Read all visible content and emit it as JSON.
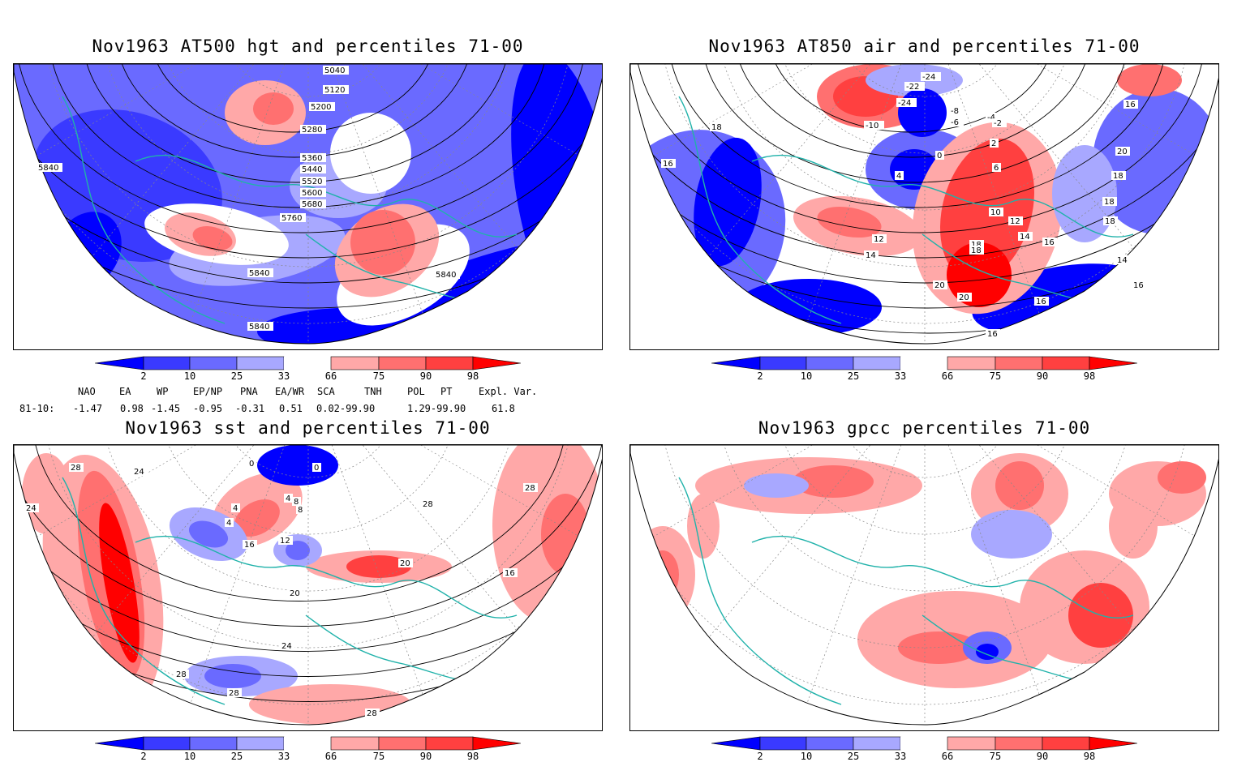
{
  "panels": [
    {
      "id": "p1",
      "title": "Nov1963 AT500 hgt and percentiles 71-00",
      "contour_labels": [
        "5040",
        "5120",
        "5200",
        "5280",
        "5360",
        "5440",
        "5520",
        "5600",
        "5680",
        "5760",
        "5840",
        "5840",
        "5840",
        "5840"
      ]
    },
    {
      "id": "p2",
      "title": "Nov1963 AT850 air and percentiles 71-00",
      "contour_labels": [
        "-24",
        "-22",
        "-24",
        "-10",
        "-8",
        "-6",
        "-4",
        "-2",
        "0",
        "2",
        "4",
        "6",
        "10",
        "12",
        "12",
        "14",
        "14",
        "16",
        "16",
        "18",
        "18",
        "20",
        "20",
        "16",
        "18",
        "18",
        "14",
        "16",
        "16",
        "18",
        "20",
        "18",
        "16"
      ]
    },
    {
      "id": "p3",
      "title": "Nov1963 sst and percentiles 71-00",
      "contour_labels": [
        "28",
        "24",
        "24",
        "0",
        "0",
        "4",
        "4",
        "8",
        "4",
        "8",
        "12",
        "16",
        "20",
        "20",
        "24",
        "28",
        "28",
        "28",
        "28",
        "16",
        "28"
      ]
    },
    {
      "id": "p4",
      "title": "Nov1963 gpcc percentiles 71-00",
      "contour_labels": []
    }
  ],
  "colorbar": {
    "labels": [
      "2",
      "10",
      "25",
      "33",
      "66",
      "75",
      "90",
      "98"
    ],
    "colors": {
      "blue_dark": "#0000ff",
      "blue_mid": "#3a3aff",
      "blue_med": "#6a6aff",
      "blue_light": "#a8a8ff",
      "red_light": "#ffa8a8",
      "red_med": "#ff7070",
      "red_mid": "#ff4040",
      "red_dark": "#ff0000"
    }
  },
  "indices": {
    "headers": [
      "NAO",
      "EA",
      "WP",
      "EP/NP",
      "PNA",
      "EA/WR",
      "SCA",
      "TNH",
      "POL",
      "PT",
      "Expl. Var."
    ],
    "row_label": "81-10:",
    "values": [
      "-1.47",
      "0.98",
      "-1.45",
      "-0.95",
      "-0.31",
      "0.51",
      "0.02-99.90",
      "1.29-99.90",
      "61.8"
    ]
  }
}
